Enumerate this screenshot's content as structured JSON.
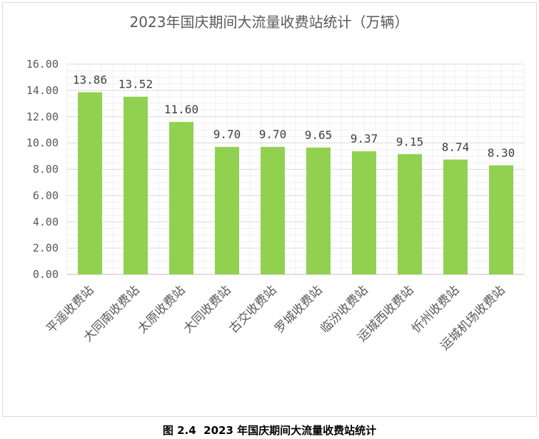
{
  "chart_data": {
    "type": "bar",
    "title": "2023年国庆期间大流量收费站统计（万辆）",
    "categories": [
      "平遥收费站",
      "大同南收费站",
      "太原收费站",
      "大同收费站",
      "古交收费站",
      "罗城收费站",
      "临汾收费站",
      "运城西收费站",
      "忻州收费站",
      "运城机场收费站"
    ],
    "values": [
      13.86,
      13.52,
      11.6,
      9.7,
      9.7,
      9.65,
      9.37,
      9.15,
      8.74,
      8.3
    ],
    "data_labels": [
      "13.86",
      "13.52",
      "11.60",
      "9.70",
      "9.70",
      "9.65",
      "9.37",
      "9.15",
      "8.74",
      "8.30"
    ],
    "y_tick_labels": [
      "0.00",
      "2.00",
      "4.00",
      "6.00",
      "8.00",
      "10.00",
      "12.00",
      "14.00",
      "16.00"
    ],
    "ylim": [
      0,
      16
    ],
    "xlabel": "",
    "ylabel": "",
    "grid": true,
    "legend": "none",
    "bar_color": "#92D050"
  },
  "caption": "图 2.4  2023 年国庆期间大流量收费站统计"
}
